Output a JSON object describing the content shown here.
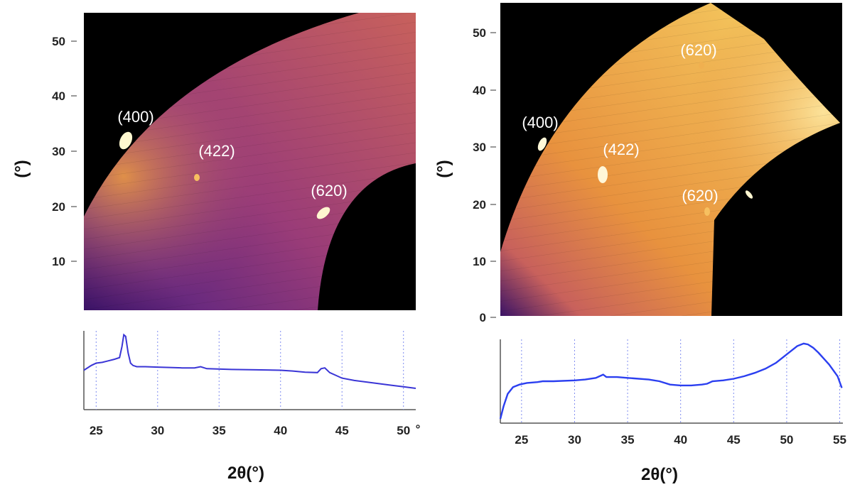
{
  "chart_data": [
    {
      "type": "heatmap",
      "panel": "left",
      "colormap": [
        "#1a0a3a",
        "#3b1366",
        "#6a2a7e",
        "#9a3c78",
        "#c8615c",
        "#e8923e",
        "#f6d365"
      ],
      "ylabel": "(°)",
      "y_ticks": [
        "10",
        "20",
        "30",
        "40",
        "50"
      ],
      "ylim": [
        0,
        55
      ],
      "xlim": [
        24,
        51
      ],
      "annotations": [
        "(400)",
        "(422)",
        "(620)"
      ]
    },
    {
      "type": "line",
      "panel": "left",
      "xlim": [
        24,
        51
      ],
      "x_ticks": [
        "25",
        "30",
        "35",
        "40",
        "45",
        "50"
      ],
      "x_unit": "°",
      "xlabel": "2θ(°)",
      "line_color": "#3a35d6",
      "x": [
        24,
        24.6,
        25,
        25.5,
        26,
        26.5,
        26.9,
        27.1,
        27.25,
        27.4,
        27.6,
        27.8,
        28,
        28.3,
        29,
        30,
        31,
        32,
        33,
        33.5,
        34,
        36,
        38,
        40,
        41,
        42,
        43,
        43.3,
        43.6,
        44,
        45,
        46,
        47,
        48,
        49,
        50,
        51
      ],
      "y": [
        0.5,
        0.56,
        0.59,
        0.6,
        0.62,
        0.64,
        0.66,
        0.8,
        0.95,
        0.93,
        0.72,
        0.59,
        0.56,
        0.545,
        0.545,
        0.54,
        0.535,
        0.53,
        0.53,
        0.545,
        0.52,
        0.51,
        0.505,
        0.5,
        0.49,
        0.475,
        0.47,
        0.52,
        0.53,
        0.47,
        0.4,
        0.37,
        0.35,
        0.33,
        0.31,
        0.29,
        0.27
      ]
    },
    {
      "type": "heatmap",
      "panel": "right",
      "colormap": [
        "#1a0a3a",
        "#3b1366",
        "#6a2a7e",
        "#9a3c78",
        "#c8615c",
        "#e8923e",
        "#f6d365"
      ],
      "ylabel": "(°)",
      "y_ticks": [
        "0",
        "10",
        "20",
        "30",
        "40",
        "50"
      ],
      "ylim": [
        0,
        55
      ],
      "xlim": [
        23,
        55.3
      ],
      "annotations": [
        "(620)",
        "(400)",
        "(422)",
        "(620)"
      ]
    },
    {
      "type": "line",
      "panel": "right",
      "xlim": [
        23,
        55.3
      ],
      "x_ticks": [
        "25",
        "30",
        "35",
        "40",
        "45",
        "50",
        "55"
      ],
      "xlabel": "2θ(°)",
      "line_color": "#2b3ff0",
      "x": [
        23,
        23.3,
        23.7,
        24.2,
        24.8,
        25.5,
        26.5,
        27,
        28,
        30,
        31,
        32,
        32.7,
        33,
        34,
        35,
        37,
        38,
        39,
        40,
        41,
        42,
        42.5,
        43,
        44,
        45,
        46,
        47,
        48,
        49,
        50,
        51,
        51.6,
        52,
        52.5,
        53,
        54,
        54.8,
        55.2
      ],
      "y": [
        0.05,
        0.2,
        0.35,
        0.43,
        0.46,
        0.48,
        0.49,
        0.5,
        0.5,
        0.51,
        0.52,
        0.54,
        0.58,
        0.55,
        0.55,
        0.54,
        0.52,
        0.5,
        0.46,
        0.45,
        0.45,
        0.46,
        0.47,
        0.5,
        0.51,
        0.53,
        0.56,
        0.6,
        0.65,
        0.72,
        0.82,
        0.92,
        0.95,
        0.94,
        0.9,
        0.84,
        0.7,
        0.56,
        0.42
      ]
    }
  ]
}
